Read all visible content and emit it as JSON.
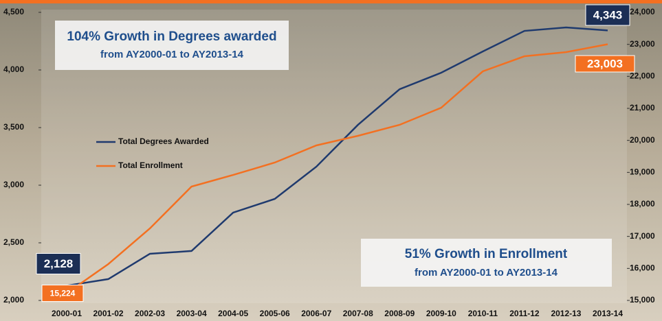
{
  "chart_data": {
    "type": "line",
    "categories": [
      "2000-01",
      "2001-02",
      "2002-03",
      "2003-04",
      "2004-05",
      "2005-06",
      "2006-07",
      "2007-08",
      "2008-09",
      "2009-10",
      "2010-11",
      "2011-12",
      "2012-13",
      "2013-14"
    ],
    "series": [
      {
        "name": "Total Degrees Awarded",
        "color": "#1f3a6e",
        "axis": "y",
        "values": [
          2128,
          2185,
          2405,
          2429,
          2762,
          2881,
          3161,
          3524,
          3833,
          3976,
          4161,
          4339,
          4369,
          4343
        ],
        "value_labels": [
          "2,128",
          null,
          null,
          null,
          null,
          null,
          null,
          null,
          null,
          null,
          null,
          null,
          null,
          "4,343"
        ]
      },
      {
        "name": "Total Enrollment",
        "color": "#f37021",
        "axis": "y2",
        "values": [
          15224,
          16136,
          17250,
          18557,
          18921,
          19307,
          19843,
          20143,
          20486,
          21021,
          22157,
          22628,
          22757,
          23003
        ],
        "value_labels": [
          "15,224",
          null,
          null,
          null,
          null,
          null,
          null,
          null,
          null,
          null,
          null,
          null,
          null,
          "23,003"
        ]
      }
    ],
    "ylim": [
      2000,
      4500
    ],
    "yticks": [
      {
        "value": 2000,
        "label": "2,000"
      },
      {
        "value": 2500,
        "label": "2,500"
      },
      {
        "value": 3000,
        "label": "3,000"
      },
      {
        "value": 3500,
        "label": "3,500"
      },
      {
        "value": 4000,
        "label": "4,000"
      },
      {
        "value": 4500,
        "label": "4,500"
      }
    ],
    "y2lim": [
      15000,
      24000
    ],
    "y2ticks": [
      {
        "value": 15000,
        "label": "15,000"
      },
      {
        "value": 16000,
        "label": "16,000"
      },
      {
        "value": 17000,
        "label": "17,000"
      },
      {
        "value": 18000,
        "label": "18,000"
      },
      {
        "value": 19000,
        "label": "19,000"
      },
      {
        "value": 20000,
        "label": "20,000"
      },
      {
        "value": 21000,
        "label": "21,000"
      },
      {
        "value": 22000,
        "label": "22,000"
      },
      {
        "value": 23000,
        "label": "23,000"
      },
      {
        "value": 24000,
        "label": "24,000"
      }
    ],
    "annotations": [
      {
        "headline": "104% Growth in Degrees awarded",
        "subline": "from AY2000-01 to AY2013-14"
      },
      {
        "headline": "51% Growth in Enrollment",
        "subline": "from AY2000-01 to AY2013-14"
      }
    ]
  }
}
